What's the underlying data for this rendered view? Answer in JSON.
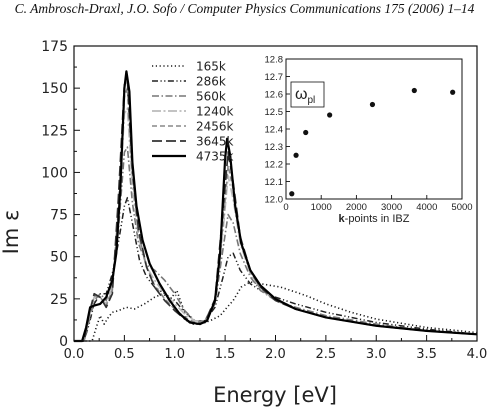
{
  "header_text": "C. Ambrosch-Draxl, J.O. Sofo / Computer Physics Communications 175 (2006) 1–14",
  "chart_data": [
    {
      "type": "line",
      "title": "",
      "xlabel": "Energy [eV]",
      "ylabel": "Im ε",
      "xlim": [
        0,
        4.0
      ],
      "ylim": [
        0,
        175
      ],
      "xticks": [
        "0.0",
        "0.5",
        "1.0",
        "1.5",
        "2.0",
        "2.5",
        "3.0",
        "3.5",
        "4.0"
      ],
      "yticks": [
        "0",
        "25",
        "50",
        "75",
        "100",
        "125",
        "150",
        "175"
      ],
      "grid": false,
      "legend_position": "top-left-center",
      "series": [
        {
          "name": "165k",
          "dash": "dot",
          "color": "#1a1a1a",
          "points": [
            [
              0.0,
              0
            ],
            [
              0.18,
              0
            ],
            [
              0.22,
              8
            ],
            [
              0.26,
              15
            ],
            [
              0.3,
              10
            ],
            [
              0.34,
              14
            ],
            [
              0.38,
              17
            ],
            [
              0.44,
              18
            ],
            [
              0.52,
              20
            ],
            [
              0.6,
              19
            ],
            [
              0.7,
              22
            ],
            [
              0.8,
              26
            ],
            [
              0.88,
              28
            ],
            [
              0.96,
              25
            ],
            [
              1.02,
              30
            ],
            [
              1.08,
              20
            ],
            [
              1.12,
              12
            ],
            [
              1.18,
              10
            ],
            [
              1.25,
              10
            ],
            [
              1.35,
              12
            ],
            [
              1.45,
              15
            ],
            [
              1.52,
              20
            ],
            [
              1.58,
              24
            ],
            [
              1.66,
              32
            ],
            [
              1.75,
              35
            ],
            [
              1.85,
              34
            ],
            [
              1.95,
              33
            ],
            [
              2.05,
              32
            ],
            [
              2.15,
              30
            ],
            [
              2.3,
              27
            ],
            [
              2.5,
              22
            ],
            [
              2.75,
              17
            ],
            [
              3.0,
              13
            ],
            [
              3.5,
              8
            ],
            [
              4.0,
              5
            ]
          ]
        },
        {
          "name": "286k",
          "dash": "dashdotdot",
          "color": "#222222",
          "points": [
            [
              0.0,
              0
            ],
            [
              0.1,
              0
            ],
            [
              0.15,
              10
            ],
            [
              0.2,
              22
            ],
            [
              0.26,
              28
            ],
            [
              0.32,
              28
            ],
            [
              0.38,
              40
            ],
            [
              0.44,
              58
            ],
            [
              0.5,
              80
            ],
            [
              0.53,
              85
            ],
            [
              0.58,
              70
            ],
            [
              0.65,
              48
            ],
            [
              0.72,
              38
            ],
            [
              0.8,
              32
            ],
            [
              0.9,
              28
            ],
            [
              1.0,
              24
            ],
            [
              1.1,
              17
            ],
            [
              1.2,
              12
            ],
            [
              1.3,
              12
            ],
            [
              1.4,
              20
            ],
            [
              1.48,
              38
            ],
            [
              1.53,
              50
            ],
            [
              1.58,
              52
            ],
            [
              1.65,
              42
            ],
            [
              1.75,
              34
            ],
            [
              1.85,
              30
            ],
            [
              2.0,
              26
            ],
            [
              2.2,
              22
            ],
            [
              2.5,
              17
            ],
            [
              3.0,
              11
            ],
            [
              3.5,
              7
            ],
            [
              4.0,
              4
            ]
          ]
        },
        {
          "name": "560k",
          "dash": "dashdot",
          "color": "#777777",
          "points": [
            [
              0.0,
              0
            ],
            [
              0.1,
              0
            ],
            [
              0.15,
              12
            ],
            [
              0.2,
              24
            ],
            [
              0.26,
              28
            ],
            [
              0.32,
              24
            ],
            [
              0.38,
              35
            ],
            [
              0.44,
              65
            ],
            [
              0.5,
              112
            ],
            [
              0.53,
              115
            ],
            [
              0.58,
              82
            ],
            [
              0.64,
              58
            ],
            [
              0.72,
              45
            ],
            [
              0.8,
              42
            ],
            [
              0.9,
              36
            ],
            [
              1.0,
              28
            ],
            [
              1.1,
              18
            ],
            [
              1.2,
              12
            ],
            [
              1.3,
              12
            ],
            [
              1.4,
              22
            ],
            [
              1.48,
              55
            ],
            [
              1.53,
              75
            ],
            [
              1.58,
              70
            ],
            [
              1.65,
              52
            ],
            [
              1.75,
              38
            ],
            [
              1.85,
              30
            ],
            [
              2.0,
              24
            ],
            [
              2.2,
              20
            ],
            [
              2.5,
              15
            ],
            [
              3.0,
              10
            ],
            [
              3.5,
              6
            ],
            [
              4.0,
              4
            ]
          ]
        },
        {
          "name": "1240k",
          "dash": "dashdot2",
          "color": "#bbbbbb",
          "points": [
            [
              0.0,
              0
            ],
            [
              0.1,
              0
            ],
            [
              0.15,
              14
            ],
            [
              0.2,
              26
            ],
            [
              0.26,
              26
            ],
            [
              0.32,
              22
            ],
            [
              0.38,
              32
            ],
            [
              0.44,
              72
            ],
            [
              0.5,
              135
            ],
            [
              0.53,
              138
            ],
            [
              0.58,
              92
            ],
            [
              0.64,
              62
            ],
            [
              0.72,
              44
            ],
            [
              0.8,
              36
            ],
            [
              0.9,
              28
            ],
            [
              1.0,
              22
            ],
            [
              1.1,
              16
            ],
            [
              1.2,
              12
            ],
            [
              1.3,
              12
            ],
            [
              1.4,
              24
            ],
            [
              1.48,
              66
            ],
            [
              1.53,
              98
            ],
            [
              1.58,
              84
            ],
            [
              1.65,
              58
            ],
            [
              1.75,
              40
            ],
            [
              1.85,
              31
            ],
            [
              2.0,
              24
            ],
            [
              2.2,
              19
            ],
            [
              2.5,
              14
            ],
            [
              3.0,
              9
            ],
            [
              3.5,
              6
            ],
            [
              4.0,
              4
            ]
          ]
        },
        {
          "name": "2456k",
          "dash": "dash",
          "color": "#888888",
          "points": [
            [
              0.0,
              0
            ],
            [
              0.1,
              0
            ],
            [
              0.15,
              15
            ],
            [
              0.2,
              27
            ],
            [
              0.26,
              26
            ],
            [
              0.32,
              21
            ],
            [
              0.38,
              30
            ],
            [
              0.44,
              78
            ],
            [
              0.5,
              145
            ],
            [
              0.53,
              150
            ],
            [
              0.58,
              98
            ],
            [
              0.64,
              64
            ],
            [
              0.72,
              44
            ],
            [
              0.8,
              33
            ],
            [
              0.9,
              25
            ],
            [
              1.0,
              19
            ],
            [
              1.1,
              14
            ],
            [
              1.2,
              11
            ],
            [
              1.3,
              12
            ],
            [
              1.4,
              24
            ],
            [
              1.48,
              70
            ],
            [
              1.53,
              104
            ],
            [
              1.58,
              90
            ],
            [
              1.65,
              60
            ],
            [
              1.75,
              41
            ],
            [
              1.85,
              31
            ],
            [
              2.0,
              24
            ],
            [
              2.2,
              19
            ],
            [
              2.5,
              14
            ],
            [
              3.0,
              9
            ],
            [
              3.5,
              6
            ],
            [
              4.0,
              4
            ]
          ]
        },
        {
          "name": "3645k",
          "dash": "longdash",
          "color": "#333333",
          "points": [
            [
              0.0,
              0
            ],
            [
              0.1,
              0
            ],
            [
              0.15,
              16
            ],
            [
              0.2,
              28
            ],
            [
              0.26,
              26
            ],
            [
              0.32,
              20
            ],
            [
              0.38,
              28
            ],
            [
              0.44,
              84
            ],
            [
              0.5,
              152
            ],
            [
              0.53,
              155
            ],
            [
              0.58,
              102
            ],
            [
              0.64,
              66
            ],
            [
              0.72,
              44
            ],
            [
              0.8,
              32
            ],
            [
              0.9,
              24
            ],
            [
              1.0,
              18
            ],
            [
              1.1,
              13
            ],
            [
              1.2,
              10
            ],
            [
              1.3,
              11
            ],
            [
              1.4,
              25
            ],
            [
              1.48,
              78
            ],
            [
              1.53,
              112
            ],
            [
              1.58,
              94
            ],
            [
              1.65,
              62
            ],
            [
              1.75,
              42
            ],
            [
              1.85,
              32
            ],
            [
              2.0,
              24
            ],
            [
              2.2,
              19
            ],
            [
              2.5,
              14
            ],
            [
              3.0,
              9
            ],
            [
              3.5,
              6
            ],
            [
              4.0,
              4
            ]
          ]
        },
        {
          "name": "4735k",
          "dash": "solid",
          "color": "#000000",
          "points": [
            [
              0.0,
              0
            ],
            [
              0.08,
              0
            ],
            [
              0.12,
              8
            ],
            [
              0.16,
              20
            ],
            [
              0.2,
              21
            ],
            [
              0.26,
              22
            ],
            [
              0.32,
              26
            ],
            [
              0.38,
              36
            ],
            [
              0.42,
              52
            ],
            [
              0.46,
              90
            ],
            [
              0.5,
              150
            ],
            [
              0.52,
              160
            ],
            [
              0.55,
              148
            ],
            [
              0.58,
              106
            ],
            [
              0.62,
              80
            ],
            [
              0.68,
              60
            ],
            [
              0.75,
              46
            ],
            [
              0.85,
              34
            ],
            [
              0.95,
              24
            ],
            [
              1.05,
              16
            ],
            [
              1.15,
              11
            ],
            [
              1.25,
              10
            ],
            [
              1.32,
              12
            ],
            [
              1.4,
              24
            ],
            [
              1.45,
              52
            ],
            [
              1.5,
              108
            ],
            [
              1.52,
              120
            ],
            [
              1.55,
              110
            ],
            [
              1.6,
              80
            ],
            [
              1.66,
              58
            ],
            [
              1.75,
              42
            ],
            [
              1.85,
              33
            ],
            [
              2.0,
              25
            ],
            [
              2.2,
              19
            ],
            [
              2.5,
              14
            ],
            [
              3.0,
              9
            ],
            [
              3.5,
              6
            ],
            [
              4.0,
              4
            ]
          ]
        }
      ]
    },
    {
      "type": "scatter",
      "title": "ω_pl",
      "title_main": "ω",
      "title_sub": "pl",
      "xlabel_bold": "k",
      "xlabel_rest": "-points in IBZ",
      "xlim": [
        0,
        5000
      ],
      "ylim": [
        12.0,
        12.8
      ],
      "xticks": [
        "0",
        "1000",
        "2000",
        "3000",
        "4000",
        "5000"
      ],
      "yticks": [
        "12.0",
        "12.1",
        "12.2",
        "12.3",
        "12.4",
        "12.5",
        "12.6",
        "12.7",
        "12.8"
      ],
      "grid": false,
      "series": [
        {
          "name": "",
          "x": [
            165,
            286,
            560,
            1240,
            2456,
            3645,
            4735
          ],
          "y": [
            12.03,
            12.25,
            12.38,
            12.48,
            12.54,
            12.62,
            12.61
          ]
        }
      ]
    }
  ]
}
